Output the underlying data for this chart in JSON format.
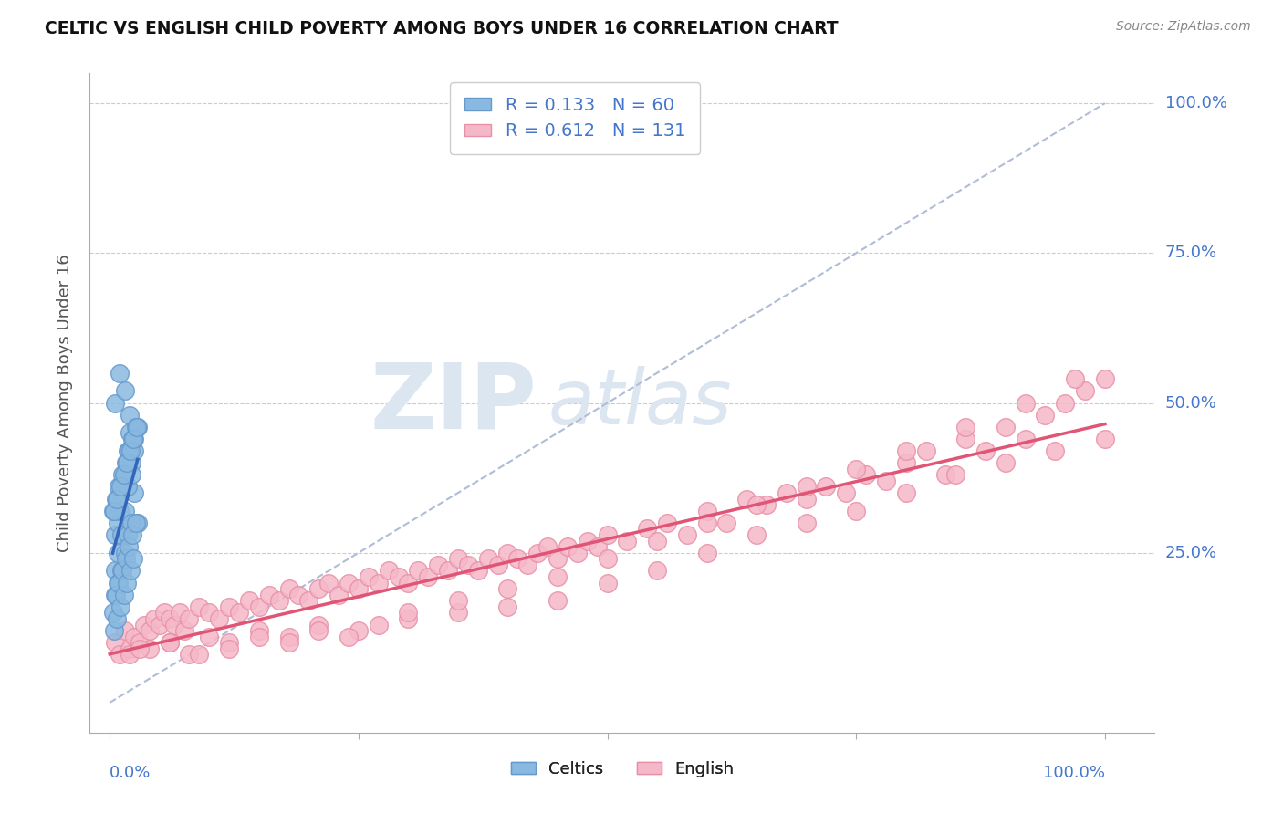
{
  "title": "CELTIC VS ENGLISH CHILD POVERTY AMONG BOYS UNDER 16 CORRELATION CHART",
  "source_text": "Source: ZipAtlas.com",
  "ylabel": "Child Poverty Among Boys Under 16",
  "celtics_color": "#89b9e0",
  "english_color": "#f5b8c8",
  "celtics_edge": "#6699cc",
  "english_edge": "#e890a8",
  "regression_celtic_color": "#3366bb",
  "regression_english_color": "#e05575",
  "diagonal_color": "#b0bcd8",
  "background_color": "#ffffff",
  "title_color": "#111111",
  "axis_label_color": "#4477cc",
  "watermark_color": "#dce6f0",
  "celtics_x": [
    0.005,
    0.008,
    0.01,
    0.012,
    0.015,
    0.018,
    0.02,
    0.022,
    0.025,
    0.028,
    0.005,
    0.008,
    0.012,
    0.015,
    0.018,
    0.022,
    0.025,
    0.028,
    0.005,
    0.01,
    0.015,
    0.02,
    0.025,
    0.005,
    0.008,
    0.012,
    0.015,
    0.018,
    0.022,
    0.003,
    0.006,
    0.009,
    0.013,
    0.016,
    0.019,
    0.023,
    0.026,
    0.003,
    0.006,
    0.009,
    0.013,
    0.016,
    0.019,
    0.023,
    0.026,
    0.004,
    0.007,
    0.011,
    0.014,
    0.017,
    0.021,
    0.024,
    0.027,
    0.004,
    0.007,
    0.011,
    0.014,
    0.017,
    0.021,
    0.024
  ],
  "celtics_y": [
    0.28,
    0.3,
    0.32,
    0.35,
    0.38,
    0.42,
    0.45,
    0.4,
    0.35,
    0.3,
    0.22,
    0.25,
    0.28,
    0.32,
    0.36,
    0.38,
    0.42,
    0.46,
    0.5,
    0.55,
    0.52,
    0.48,
    0.44,
    0.18,
    0.2,
    0.22,
    0.25,
    0.28,
    0.3,
    0.32,
    0.34,
    0.36,
    0.38,
    0.4,
    0.42,
    0.44,
    0.46,
    0.15,
    0.18,
    0.2,
    0.22,
    0.24,
    0.26,
    0.28,
    0.3,
    0.32,
    0.34,
    0.36,
    0.38,
    0.4,
    0.42,
    0.44,
    0.46,
    0.12,
    0.14,
    0.16,
    0.18,
    0.2,
    0.22,
    0.24
  ],
  "english_x": [
    0.005,
    0.01,
    0.015,
    0.02,
    0.025,
    0.03,
    0.035,
    0.04,
    0.045,
    0.05,
    0.055,
    0.06,
    0.065,
    0.07,
    0.075,
    0.08,
    0.09,
    0.1,
    0.11,
    0.12,
    0.13,
    0.14,
    0.15,
    0.16,
    0.17,
    0.18,
    0.19,
    0.2,
    0.21,
    0.22,
    0.23,
    0.24,
    0.25,
    0.26,
    0.27,
    0.28,
    0.29,
    0.3,
    0.31,
    0.32,
    0.33,
    0.34,
    0.35,
    0.36,
    0.37,
    0.38,
    0.39,
    0.4,
    0.41,
    0.42,
    0.43,
    0.44,
    0.45,
    0.46,
    0.47,
    0.48,
    0.49,
    0.5,
    0.52,
    0.54,
    0.56,
    0.58,
    0.6,
    0.62,
    0.64,
    0.66,
    0.68,
    0.7,
    0.72,
    0.74,
    0.76,
    0.78,
    0.8,
    0.82,
    0.84,
    0.86,
    0.88,
    0.9,
    0.92,
    0.94,
    0.96,
    0.98,
    1.0,
    0.02,
    0.04,
    0.06,
    0.08,
    0.1,
    0.12,
    0.15,
    0.18,
    0.21,
    0.25,
    0.3,
    0.35,
    0.4,
    0.45,
    0.5,
    0.55,
    0.6,
    0.65,
    0.7,
    0.75,
    0.8,
    0.85,
    0.9,
    0.95,
    1.0,
    0.03,
    0.06,
    0.09,
    0.12,
    0.15,
    0.18,
    0.21,
    0.24,
    0.27,
    0.3,
    0.35,
    0.4,
    0.45,
    0.5,
    0.55,
    0.6,
    0.65,
    0.7,
    0.75,
    0.8,
    0.86,
    0.92,
    0.97
  ],
  "english_y": [
    0.1,
    0.08,
    0.12,
    0.09,
    0.11,
    0.1,
    0.13,
    0.12,
    0.14,
    0.13,
    0.15,
    0.14,
    0.13,
    0.15,
    0.12,
    0.14,
    0.16,
    0.15,
    0.14,
    0.16,
    0.15,
    0.17,
    0.16,
    0.18,
    0.17,
    0.19,
    0.18,
    0.17,
    0.19,
    0.2,
    0.18,
    0.2,
    0.19,
    0.21,
    0.2,
    0.22,
    0.21,
    0.2,
    0.22,
    0.21,
    0.23,
    0.22,
    0.24,
    0.23,
    0.22,
    0.24,
    0.23,
    0.25,
    0.24,
    0.23,
    0.25,
    0.26,
    0.24,
    0.26,
    0.25,
    0.27,
    0.26,
    0.28,
    0.27,
    0.29,
    0.3,
    0.28,
    0.32,
    0.3,
    0.34,
    0.33,
    0.35,
    0.34,
    0.36,
    0.35,
    0.38,
    0.37,
    0.4,
    0.42,
    0.38,
    0.44,
    0.42,
    0.46,
    0.44,
    0.48,
    0.5,
    0.52,
    0.54,
    0.08,
    0.09,
    0.1,
    0.08,
    0.11,
    0.1,
    0.12,
    0.11,
    0.13,
    0.12,
    0.14,
    0.15,
    0.16,
    0.17,
    0.2,
    0.22,
    0.25,
    0.28,
    0.3,
    0.32,
    0.35,
    0.38,
    0.4,
    0.42,
    0.44,
    0.09,
    0.1,
    0.08,
    0.09,
    0.11,
    0.1,
    0.12,
    0.11,
    0.13,
    0.15,
    0.17,
    0.19,
    0.21,
    0.24,
    0.27,
    0.3,
    0.33,
    0.36,
    0.39,
    0.42,
    0.46,
    0.5,
    0.54
  ],
  "ylim": [
    -0.05,
    1.05
  ],
  "xlim": [
    -0.02,
    1.05
  ]
}
